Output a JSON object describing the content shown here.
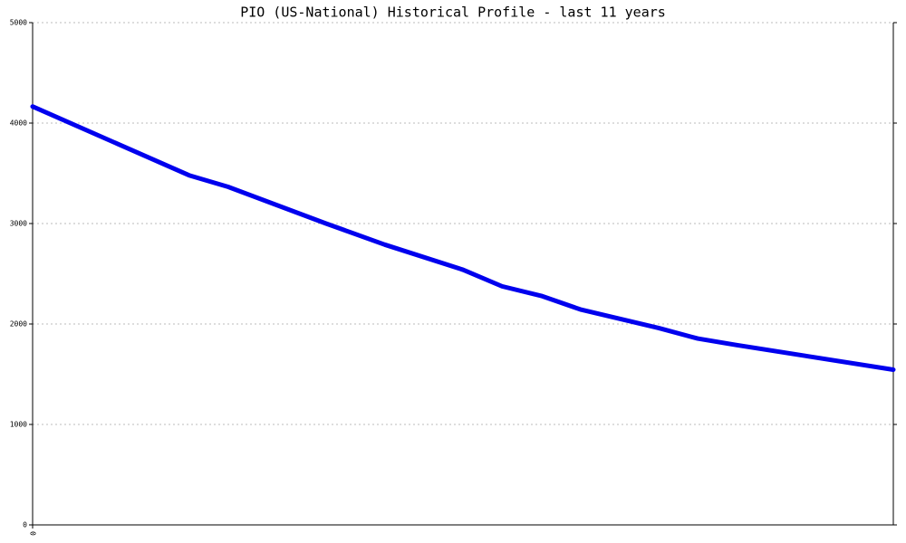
{
  "chart_data": {
    "type": "line",
    "title": "PIO (US-National) Historical Profile - last 11 years",
    "x": [
      0,
      4,
      5,
      7.5,
      9,
      11,
      12,
      13,
      14,
      16,
      17,
      18,
      22
    ],
    "series": [
      {
        "color": "#0000ee",
        "values": [
          4165,
          3480,
          3365,
          3000,
          2790,
          2540,
          2375,
          2280,
          2145,
          1960,
          1855,
          1790,
          1545
        ]
      }
    ],
    "xlim": [
      0,
      22
    ],
    "xticks": [
      0
    ],
    "ylim": [
      0,
      5000
    ],
    "yticks": [
      0,
      1000,
      2000,
      3000,
      4000,
      5000
    ],
    "grid": true
  }
}
